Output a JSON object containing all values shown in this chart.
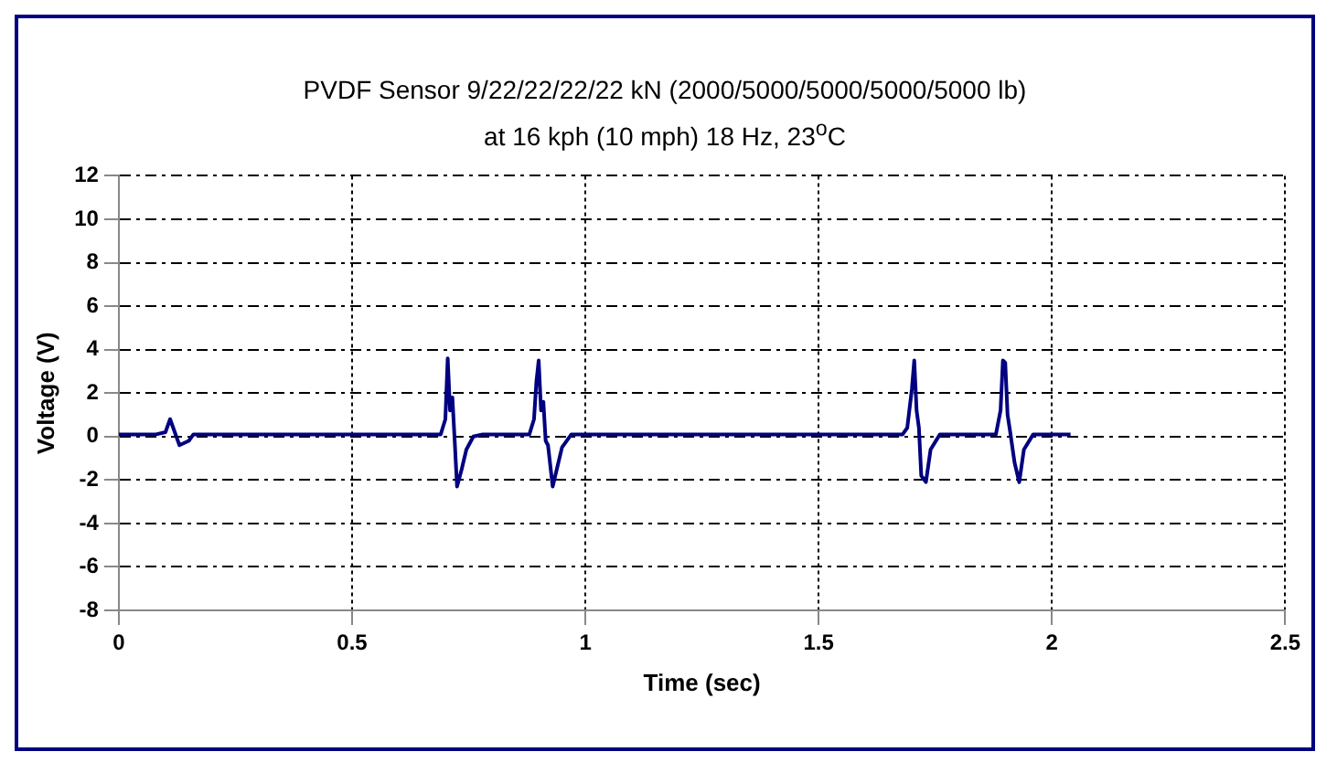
{
  "chart_data": {
    "type": "line",
    "title": "PVDF Sensor 9/22/22/22/22 kN (2000/5000/5000/5000/5000 lb)",
    "subtitle": "at 16 kph (10 mph) 18 Hz, 23$^{o}$C",
    "xlabel": "Time (sec)",
    "ylabel": "Voltage (V)",
    "xlim": [
      0,
      2.5
    ],
    "xticks": [
      0,
      0.5,
      1,
      1.5,
      2,
      2.5
    ],
    "ylim": [
      -8,
      12
    ],
    "yticks": [
      -8,
      -6,
      -4,
      -2,
      0,
      2,
      4,
      6,
      8,
      10,
      12
    ],
    "grid": true,
    "legend": false,
    "marker": "none",
    "line_style": "solid",
    "series": [
      {
        "color": "#000080",
        "x": [
          0,
          0.08,
          0.1,
          0.11,
          0.12,
          0.13,
          0.15,
          0.16,
          0.69,
          0.7,
          0.705,
          0.71,
          0.715,
          0.72,
          0.725,
          0.735,
          0.745,
          0.76,
          0.78,
          0.88,
          0.89,
          0.895,
          0.9,
          0.905,
          0.91,
          0.915,
          0.92,
          0.93,
          0.95,
          0.97,
          1.68,
          1.69,
          1.7,
          1.705,
          1.71,
          1.715,
          1.72,
          1.73,
          1.74,
          1.76,
          1.88,
          1.89,
          1.895,
          1.9,
          1.905,
          1.91,
          1.92,
          1.93,
          1.94,
          1.96,
          2.04
        ],
        "values": [
          0.1,
          0.1,
          0.2,
          0.8,
          0.2,
          -0.4,
          -0.2,
          0.1,
          0.1,
          0.8,
          3.6,
          1.2,
          1.8,
          -0.2,
          -2.3,
          -1.5,
          -0.6,
          0,
          0.1,
          0.1,
          0.8,
          2.5,
          3.5,
          1.2,
          1.6,
          -0.2,
          -0.4,
          -2.3,
          -0.5,
          0.1,
          0.1,
          0.4,
          2.2,
          3.5,
          1.2,
          0.4,
          -1.8,
          -2.1,
          -0.6,
          0.1,
          0.1,
          1.2,
          3.5,
          3.4,
          1.0,
          0.3,
          -1.2,
          -2.1,
          -0.6,
          0.1,
          0.1
        ]
      }
    ]
  }
}
